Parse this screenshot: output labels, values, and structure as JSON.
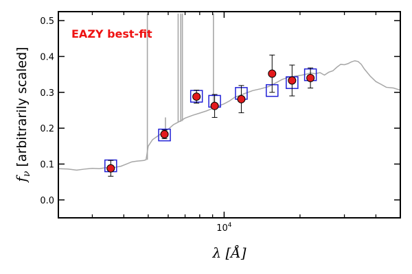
{
  "chart_data": {
    "type": "scatter",
    "title": "",
    "xlabel": "λ [Å]",
    "ylabel": "f_ν [arbitrarily scaled]",
    "x_scale": "log",
    "xlim": [
      2200,
      50000
    ],
    "ylim": [
      -0.05,
      0.525
    ],
    "grid": false,
    "legend": "none",
    "annotation": {
      "text": "EAZY best-fit",
      "color": "#ee1111"
    },
    "y_ticks": [
      {
        "value": 0.0,
        "label": "0.0"
      },
      {
        "value": 0.1,
        "label": "0.1"
      },
      {
        "value": 0.2,
        "label": "0.2"
      },
      {
        "value": 0.3,
        "label": "0.3"
      },
      {
        "value": 0.4,
        "label": "0.4"
      },
      {
        "value": 0.5,
        "label": "0.5"
      }
    ],
    "x_major_ticks": [
      {
        "value": 10000,
        "label": "10^4"
      }
    ],
    "x_minor_ticks": [
      3000,
      4000,
      5000,
      6000,
      7000,
      8000,
      9000,
      20000,
      30000,
      40000
    ],
    "sed_color": "#a6a6a6",
    "sed_points": [
      [
        2200,
        0.087
      ],
      [
        2400,
        0.086
      ],
      [
        2600,
        0.083
      ],
      [
        2800,
        0.086
      ],
      [
        3000,
        0.088
      ],
      [
        3200,
        0.087
      ],
      [
        3400,
        0.09
      ],
      [
        3500,
        0.087
      ],
      [
        3700,
        0.091
      ],
      [
        3900,
        0.094
      ],
      [
        4100,
        0.1
      ],
      [
        4300,
        0.106
      ],
      [
        4500,
        0.108
      ],
      [
        4800,
        0.11
      ],
      [
        4900,
        0.112
      ],
      [
        5000,
        0.15
      ],
      [
        5200,
        0.168
      ],
      [
        5500,
        0.18
      ],
      [
        5800,
        0.19
      ],
      [
        6000,
        0.197
      ],
      [
        6300,
        0.21
      ],
      [
        6700,
        0.22
      ],
      [
        7000,
        0.228
      ],
      [
        7500,
        0.236
      ],
      [
        8000,
        0.242
      ],
      [
        8500,
        0.248
      ],
      [
        9000,
        0.255
      ],
      [
        9500,
        0.262
      ],
      [
        10000,
        0.268
      ],
      [
        10500,
        0.276
      ],
      [
        11000,
        0.286
      ],
      [
        12000,
        0.296
      ],
      [
        13000,
        0.305
      ],
      [
        14000,
        0.31
      ],
      [
        15000,
        0.316
      ],
      [
        16000,
        0.326
      ],
      [
        17000,
        0.336
      ],
      [
        18000,
        0.342
      ],
      [
        19000,
        0.345
      ],
      [
        20000,
        0.347
      ],
      [
        21000,
        0.35
      ],
      [
        22000,
        0.354
      ],
      [
        23000,
        0.352
      ],
      [
        24000,
        0.355
      ],
      [
        25000,
        0.348
      ],
      [
        26000,
        0.356
      ],
      [
        27000,
        0.36
      ],
      [
        28000,
        0.37
      ],
      [
        29000,
        0.378
      ],
      [
        30000,
        0.377
      ],
      [
        31000,
        0.38
      ],
      [
        32000,
        0.385
      ],
      [
        33000,
        0.388
      ],
      [
        34000,
        0.386
      ],
      [
        35000,
        0.378
      ],
      [
        36000,
        0.365
      ],
      [
        38000,
        0.345
      ],
      [
        40000,
        0.33
      ],
      [
        42000,
        0.322
      ],
      [
        44000,
        0.314
      ],
      [
        47000,
        0.312
      ],
      [
        50000,
        0.306
      ]
    ],
    "sed_emission_lines": [
      {
        "x": 4960,
        "base": 0.112,
        "peak": 0.52
      },
      {
        "x": 5850,
        "base": 0.192,
        "peak": 0.23
      },
      {
        "x": 6570,
        "base": 0.216,
        "peak": 0.52
      },
      {
        "x": 6730,
        "base": 0.218,
        "peak": 0.52
      },
      {
        "x": 6830,
        "base": 0.22,
        "peak": 0.52
      },
      {
        "x": 9070,
        "base": 0.256,
        "peak": 0.52
      }
    ],
    "model_photometry": {
      "name": "model",
      "color": "#1f1fd6",
      "points": [
        {
          "x": 3550,
          "y": 0.095
        },
        {
          "x": 5800,
          "y": 0.181
        },
        {
          "x": 7770,
          "y": 0.289
        },
        {
          "x": 9170,
          "y": 0.275
        },
        {
          "x": 11700,
          "y": 0.297
        },
        {
          "x": 15500,
          "y": 0.305
        },
        {
          "x": 18600,
          "y": 0.327
        },
        {
          "x": 22000,
          "y": 0.349
        }
      ]
    },
    "observed_photometry": {
      "name": "observed",
      "color": "#e31a1c",
      "points": [
        {
          "x": 3550,
          "y": 0.088,
          "err": 0.022
        },
        {
          "x": 5800,
          "y": 0.183,
          "err": 0.012
        },
        {
          "x": 7770,
          "y": 0.288,
          "err": 0.018
        },
        {
          "x": 9170,
          "y": 0.262,
          "err": 0.032
        },
        {
          "x": 11700,
          "y": 0.281,
          "err": 0.038
        },
        {
          "x": 15500,
          "y": 0.352,
          "err": 0.052
        },
        {
          "x": 18600,
          "y": 0.333,
          "err": 0.043
        },
        {
          "x": 22000,
          "y": 0.34,
          "err": 0.028
        }
      ]
    }
  }
}
